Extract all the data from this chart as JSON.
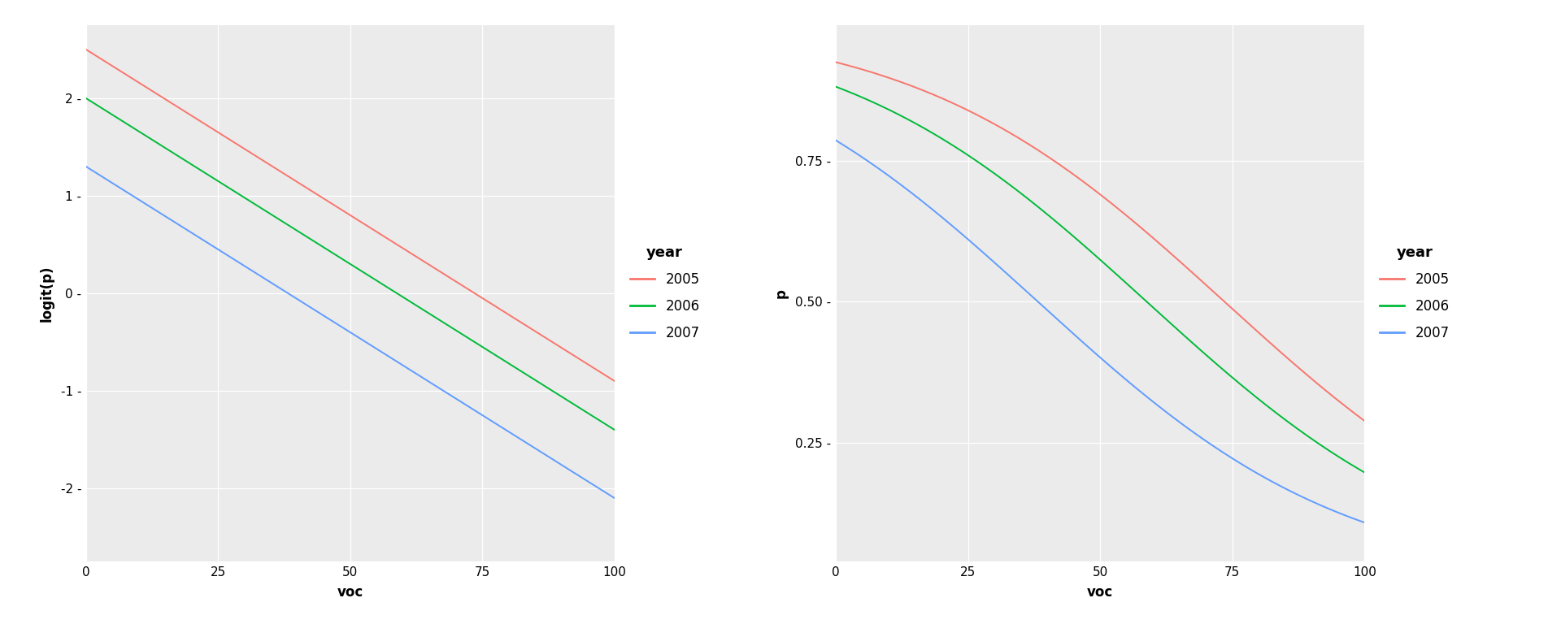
{
  "years": [
    "2005",
    "2006",
    "2007"
  ],
  "colors": [
    "#F8766D",
    "#00BA38",
    "#619CFF"
  ],
  "intercepts": [
    2.5,
    2.0,
    1.3
  ],
  "slope": -0.034,
  "voc_min": 0,
  "voc_max": 100,
  "logit_ylim": [
    -2.75,
    2.75
  ],
  "logit_yticks": [
    -2,
    -1,
    0,
    1,
    2
  ],
  "logit_ytick_labels": [
    "-2 -",
    "-1 -",
    "0 -",
    "1 -",
    "2 -"
  ],
  "p_ylim": [
    0.04,
    0.99
  ],
  "p_yticks": [
    0.25,
    0.5,
    0.75
  ],
  "p_ytick_labels": [
    "0.25 -",
    "0.50 -",
    "0.75 -"
  ],
  "xticks": [
    0,
    25,
    50,
    75,
    100
  ],
  "xlabel": "voc",
  "ylabel_left": "logit(p)",
  "ylabel_right": "p",
  "legend_title": "year",
  "background_color": "#EBEBEB",
  "grid_color": "#FFFFFF",
  "line_width": 1.4,
  "tick_fontsize": 11,
  "label_fontsize": 12,
  "legend_fontsize": 12,
  "legend_title_fontsize": 13
}
